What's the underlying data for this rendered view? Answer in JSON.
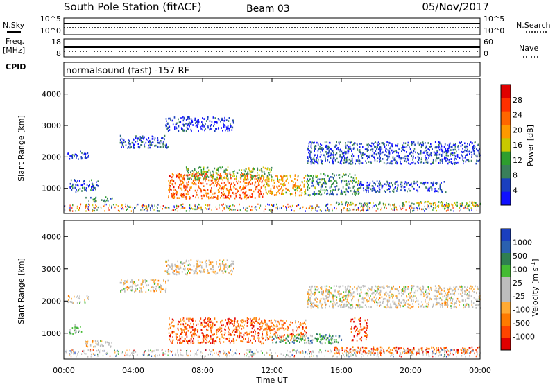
{
  "header": {
    "station": "South Pole Station (fitACF)",
    "beam": "Beam 03",
    "date": "05/Nov/2017"
  },
  "meta_panels": {
    "nsky_label": "N.Sky",
    "nsearch_label": "N.Search",
    "freq_label_1": "Freq.",
    "freq_label_2": "[MHz]",
    "nave_label": "Nave",
    "cpid_label": "CPID",
    "cpid_value": "normalsound (fast) -157 RF",
    "noise_ticks_left": [
      "10^5",
      "10^0"
    ],
    "noise_ticks_right": [
      "10^5",
      "10^0"
    ],
    "freq_ticks": [
      "18",
      "8"
    ],
    "nave_ticks": [
      "60",
      "0"
    ]
  },
  "colors": {
    "power_scale": [
      "#1010ff",
      "#1a3fbf",
      "#3a7f5a",
      "#2e9e2e",
      "#c8c800",
      "#ff9900",
      "#ff6600",
      "#ff3000",
      "#e00000"
    ],
    "velocity_scale": [
      "#e00000",
      "#ff4400",
      "#ff7a00",
      "#ffaa33",
      "#bcbcbc",
      "#bcbcbc",
      "#44bb33",
      "#2f7f50",
      "#2a60b0",
      "#1a3fbf"
    ]
  },
  "chart_data": [
    {
      "type": "heatmap",
      "title": "",
      "xlabel": "",
      "ylabel": "Slant Range [km]",
      "x_ticks": [
        "00:00",
        "04:00",
        "08:00",
        "12:00",
        "16:00",
        "20:00",
        "00:00"
      ],
      "y_ticks": [
        1000,
        2000,
        3000,
        4000
      ],
      "ylim": [
        200,
        4500
      ],
      "x_range_hours": [
        0,
        24
      ],
      "colorbar": {
        "label": "Power [dB]",
        "ticks": [
          4,
          8,
          12,
          16,
          20,
          24,
          28
        ]
      },
      "regions": [
        {
          "t0": 0.2,
          "t1": 1.4,
          "r0": 1950,
          "r1": 2200,
          "level": 0.15
        },
        {
          "t0": 1.2,
          "t1": 2.8,
          "r0": 600,
          "r1": 750,
          "level": 0.3
        },
        {
          "t0": 0.3,
          "t1": 2.0,
          "r0": 900,
          "r1": 1300,
          "level": 0.2
        },
        {
          "t0": 3.2,
          "t1": 6.0,
          "r0": 2300,
          "r1": 2700,
          "level": 0.15
        },
        {
          "t0": 5.8,
          "t1": 9.8,
          "r0": 2850,
          "r1": 3300,
          "level": 0.1
        },
        {
          "t0": 6.0,
          "t1": 11.5,
          "r0": 700,
          "r1": 1500,
          "level": 0.75
        },
        {
          "t0": 11.5,
          "t1": 14.0,
          "r0": 800,
          "r1": 1450,
          "level": 0.6
        },
        {
          "t0": 14.0,
          "t1": 17.0,
          "r0": 800,
          "r1": 1500,
          "level": 0.3
        },
        {
          "t0": 7.0,
          "t1": 12.0,
          "r0": 1300,
          "r1": 1700,
          "level": 0.4
        },
        {
          "t0": 14.0,
          "t1": 24.0,
          "r0": 1800,
          "r1": 2500,
          "level": 0.15
        },
        {
          "t0": 19.5,
          "t1": 24.0,
          "r0": 450,
          "r1": 600,
          "level": 0.45
        },
        {
          "t0": 15.5,
          "t1": 19.0,
          "r0": 500,
          "r1": 600,
          "level": 0.35
        },
        {
          "t0": 17.0,
          "t1": 22.0,
          "r0": 900,
          "r1": 1250,
          "level": 0.15
        }
      ]
    },
    {
      "type": "heatmap",
      "title": "",
      "xlabel": "Time UT",
      "ylabel": "Slant Range [km]",
      "x_ticks": [
        "00:00",
        "04:00",
        "08:00",
        "12:00",
        "16:00",
        "20:00",
        "00:00"
      ],
      "y_ticks": [
        1000,
        2000,
        3000,
        4000
      ],
      "ylim": [
        200,
        4500
      ],
      "x_range_hours": [
        0,
        24
      ],
      "colorbar": {
        "label": "Velocity [m s^-1]",
        "ticks": [
          -1000,
          -500,
          -100,
          -25,
          25,
          100,
          500,
          1000
        ]
      },
      "regions": [
        {
          "t0": 0.2,
          "t1": 1.4,
          "r0": 1950,
          "r1": 2200,
          "level": 0.45
        },
        {
          "t0": 1.2,
          "t1": 2.8,
          "r0": 600,
          "r1": 800,
          "level": 0.45
        },
        {
          "t0": 0.3,
          "t1": 1.0,
          "r0": 1000,
          "r1": 1300,
          "level": 0.6
        },
        {
          "t0": 3.2,
          "t1": 6.0,
          "r0": 2300,
          "r1": 2700,
          "level": 0.45
        },
        {
          "t0": 5.8,
          "t1": 9.8,
          "r0": 2850,
          "r1": 3300,
          "level": 0.45
        },
        {
          "t0": 6.0,
          "t1": 11.5,
          "r0": 700,
          "r1": 1500,
          "level": 0.2
        },
        {
          "t0": 11.5,
          "t1": 14.0,
          "r0": 800,
          "r1": 1450,
          "level": 0.25
        },
        {
          "t0": 12.0,
          "t1": 16.0,
          "r0": 700,
          "r1": 1000,
          "level": 0.7
        },
        {
          "t0": 14.0,
          "t1": 24.0,
          "r0": 1800,
          "r1": 2500,
          "level": 0.45
        },
        {
          "t0": 15.5,
          "t1": 24.0,
          "r0": 400,
          "r1": 600,
          "level": 0.2
        },
        {
          "t0": 16.5,
          "t1": 17.5,
          "r0": 800,
          "r1": 1500,
          "level": 0.15
        }
      ]
    }
  ]
}
